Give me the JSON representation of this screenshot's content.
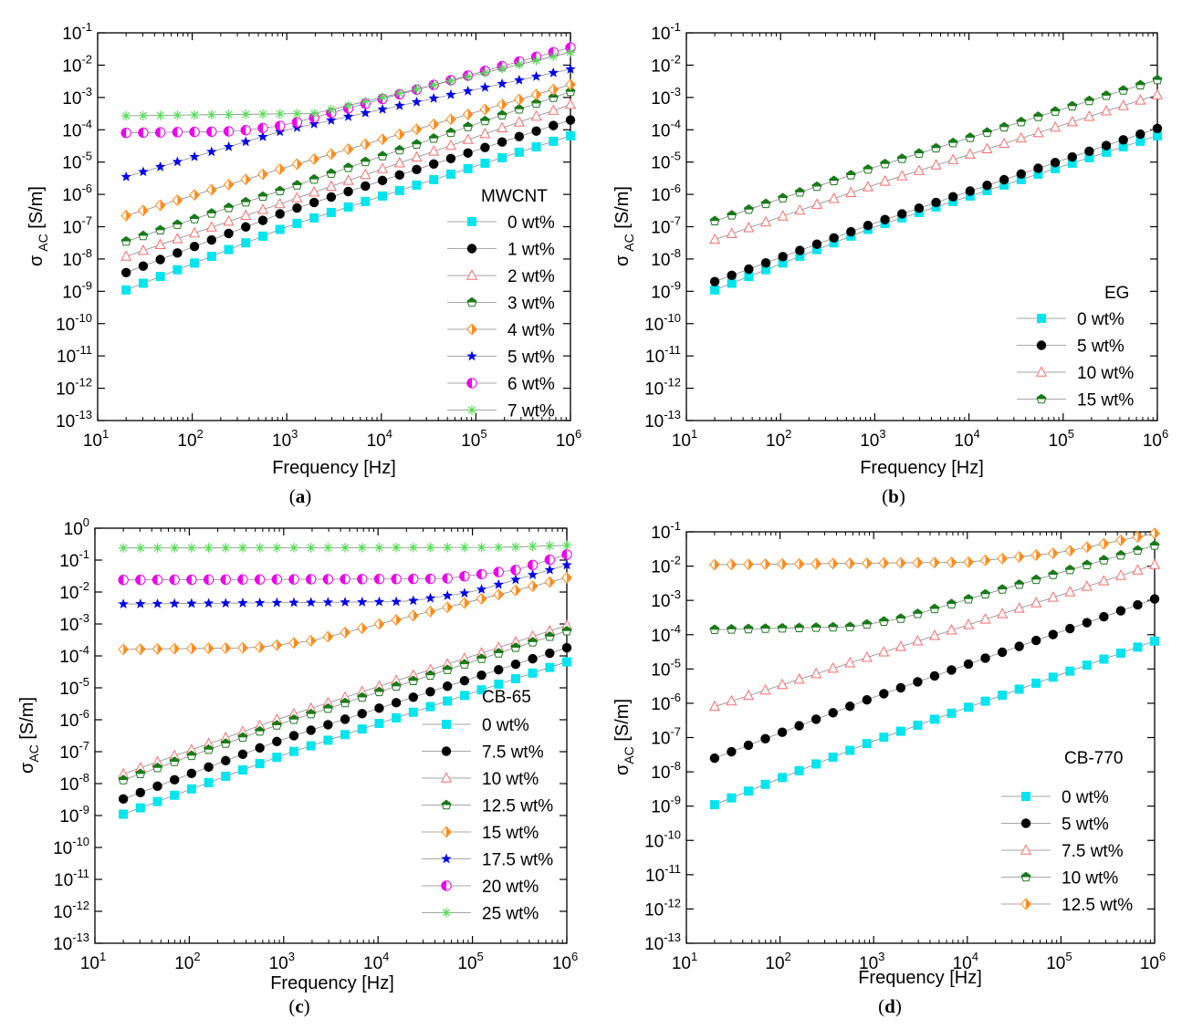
{
  "chart_data": [
    {
      "type": "scatter",
      "panel_label": "(a)",
      "legend_title": "MWCNT",
      "xlabel": "Frequency [Hz]",
      "ylabel": "σ AC [S/m]",
      "xscale": "log",
      "yscale": "log",
      "xlim": [
        10,
        1000000
      ],
      "ylim": [
        1e-13,
        0.1
      ],
      "x_ticks": [
        "1",
        "2",
        "3",
        "4",
        "5",
        "6"
      ],
      "y_ticks": [
        "-13",
        "-12",
        "-11",
        "-10",
        "-9",
        "-8",
        "-7",
        "-6",
        "-5",
        "-4",
        "-3",
        "-2",
        "-1"
      ],
      "tick_base": "10",
      "legend_position": "bottom-right",
      "series": [
        {
          "name": "0 wt%",
          "marker": "square",
          "color": "#00e5ee",
          "points": [
            [
              20,
              1.1e-09
            ],
            [
              1000,
              1e-07
            ],
            [
              1000000,
              6.5e-05
            ]
          ]
        },
        {
          "name": "1 wt%",
          "marker": "circle",
          "color": "#000000",
          "points": [
            [
              20,
              3.8e-09
            ],
            [
              1000,
              3e-07
            ],
            [
              1000000,
              0.0002
            ]
          ]
        },
        {
          "name": "2 wt%",
          "marker": "triangle",
          "color": "#ff6a6a",
          "points": [
            [
              20,
              1.2e-08
            ],
            [
              1000,
              6e-07
            ],
            [
              1000000,
              0.0006
            ]
          ]
        },
        {
          "name": "3 wt%",
          "marker": "pentagon",
          "color": "#1a7a1a",
          "points": [
            [
              20,
              3.5e-08
            ],
            [
              1000,
              1.5e-06
            ],
            [
              1000000,
              0.0015
            ]
          ]
        },
        {
          "name": "4 wt%",
          "marker": "diamond",
          "color": "#ff8c1a",
          "points": [
            [
              20,
              2.2e-07
            ],
            [
              1000,
              7e-06
            ],
            [
              1000000,
              0.0025
            ]
          ]
        },
        {
          "name": "5 wt%",
          "marker": "star",
          "color": "#0000ee",
          "points": [
            [
              20,
              3.5e-06
            ],
            [
              1000,
              0.0001
            ],
            [
              1000000,
              0.0075
            ]
          ]
        },
        {
          "name": "6 wt%",
          "marker": "circle-half",
          "color": "#ee00ee",
          "points": [
            [
              20,
              8e-05
            ],
            [
              300,
              9e-05
            ],
            [
              1000,
              0.00014
            ],
            [
              1000000,
              0.035
            ]
          ]
        },
        {
          "name": "7 wt%",
          "marker": "asterisk",
          "color": "#55dd55",
          "points": [
            [
              20,
              0.00027
            ],
            [
              2000,
              0.00032
            ],
            [
              1000000,
              0.025
            ]
          ]
        }
      ]
    },
    {
      "type": "scatter",
      "panel_label": "(b)",
      "legend_title": "EG",
      "xlabel": "Frequency [Hz]",
      "ylabel": "σ AC [S/m]",
      "xscale": "log",
      "yscale": "log",
      "xlim": [
        10,
        1000000
      ],
      "ylim": [
        1e-13,
        0.1
      ],
      "x_ticks": [
        "1",
        "2",
        "3",
        "4",
        "5",
        "6"
      ],
      "y_ticks": [
        "-13",
        "-12",
        "-11",
        "-10",
        "-9",
        "-8",
        "-7",
        "-6",
        "-5",
        "-4",
        "-3",
        "-2",
        "-1"
      ],
      "tick_base": "10",
      "legend_position": "bottom-right",
      "series": [
        {
          "name": "0 wt%",
          "marker": "square",
          "color": "#00e5ee",
          "points": [
            [
              20,
              1.1e-09
            ],
            [
              1000,
              1e-07
            ],
            [
              1000000,
              6.5e-05
            ]
          ]
        },
        {
          "name": "5 wt%",
          "marker": "circle",
          "color": "#000000",
          "points": [
            [
              20,
              2e-09
            ],
            [
              1000,
              1.3e-07
            ],
            [
              1000000,
              0.00011
            ]
          ]
        },
        {
          "name": "10 wt%",
          "marker": "triangle",
          "color": "#ff6a6a",
          "points": [
            [
              20,
              4e-08
            ],
            [
              1000,
              2e-06
            ],
            [
              1000000,
              0.0012
            ]
          ]
        },
        {
          "name": "15 wt%",
          "marker": "pentagon",
          "color": "#1a7a1a",
          "points": [
            [
              20,
              1.5e-07
            ],
            [
              1000,
              7e-06
            ],
            [
              1000000,
              0.0035
            ]
          ]
        }
      ]
    },
    {
      "type": "scatter",
      "panel_label": "(c)",
      "legend_title": "CB-65",
      "xlabel": "Frequency [Hz]",
      "ylabel": "σAC [S/m]",
      "xscale": "log",
      "yscale": "log",
      "xlim": [
        10,
        1000000
      ],
      "ylim": [
        1e-13,
        1
      ],
      "x_ticks": [
        "1",
        "2",
        "3",
        "4",
        "5",
        "6"
      ],
      "y_ticks": [
        "-13",
        "-12",
        "-11",
        "-10",
        "-9",
        "-8",
        "-7",
        "-6",
        "-5",
        "-4",
        "-3",
        "-2",
        "-1",
        "0"
      ],
      "tick_base": "10",
      "legend_position": "bottom-right",
      "series": [
        {
          "name": "0 wt%",
          "marker": "square",
          "color": "#00e5ee",
          "points": [
            [
              20,
              1.1e-09
            ],
            [
              1000,
              8e-08
            ],
            [
              1000000,
              6.5e-05
            ]
          ]
        },
        {
          "name": "7.5 wt%",
          "marker": "circle",
          "color": "#000000",
          "points": [
            [
              20,
              3.3e-09
            ],
            [
              1000,
              2.5e-07
            ],
            [
              1000000,
              0.00018
            ]
          ]
        },
        {
          "name": "10 wt%",
          "marker": "triangle",
          "color": "#ff6a6a",
          "points": [
            [
              20,
              2e-08
            ],
            [
              1000,
              1.2e-06
            ],
            [
              1000000,
              0.0009
            ]
          ]
        },
        {
          "name": "12.5 wt%",
          "marker": "pentagon",
          "color": "#1a7a1a",
          "points": [
            [
              20,
              1.3e-08
            ],
            [
              1000,
              8e-07
            ],
            [
              1000000,
              0.0006
            ]
          ]
        },
        {
          "name": "15 wt%",
          "marker": "diamond",
          "color": "#ff8c1a",
          "points": [
            [
              20,
              0.00016
            ],
            [
              500,
              0.00018
            ],
            [
              2000,
              0.0003
            ],
            [
              1000000,
              0.028
            ]
          ]
        },
        {
          "name": "17.5 wt%",
          "marker": "star",
          "color": "#0000ee",
          "points": [
            [
              20,
              0.0042
            ],
            [
              20000,
              0.005
            ],
            [
              100000,
              0.01
            ],
            [
              1000000,
              0.07
            ]
          ]
        },
        {
          "name": "20 wt%",
          "marker": "circle-half",
          "color": "#ee00ee",
          "points": [
            [
              20,
              0.024
            ],
            [
              50000,
              0.026
            ],
            [
              300000,
              0.05
            ],
            [
              1000000,
              0.15
            ]
          ]
        },
        {
          "name": "25 wt%",
          "marker": "asterisk",
          "color": "#55dd55",
          "points": [
            [
              20,
              0.24
            ],
            [
              200000,
              0.25
            ],
            [
              1000000,
              0.29
            ]
          ]
        }
      ]
    },
    {
      "type": "scatter",
      "panel_label": "(d)",
      "legend_title": "CB-770",
      "xlabel": "Frequency [Hz]",
      "ylabel": "σAC [S/m]",
      "xscale": "log",
      "yscale": "log",
      "xlim": [
        10,
        1000000
      ],
      "ylim": [
        1e-13,
        0.1
      ],
      "x_ticks": [
        "1",
        "2",
        "3",
        "4",
        "5",
        "6"
      ],
      "y_ticks": [
        "-13",
        "-12",
        "-11",
        "-10",
        "-9",
        "-8",
        "-7",
        "-6",
        "-5",
        "-4",
        "-3",
        "-2",
        "-1"
      ],
      "tick_base": "10",
      "legend_position": "bottom-right",
      "series": [
        {
          "name": "0 wt%",
          "marker": "square",
          "color": "#00e5ee",
          "points": [
            [
              20,
              1.1e-09
            ],
            [
              1000,
              8e-08
            ],
            [
              1000000,
              6.5e-05
            ]
          ]
        },
        {
          "name": "5 wt%",
          "marker": "circle",
          "color": "#000000",
          "points": [
            [
              20,
              2.5e-08
            ],
            [
              1000,
              1.5e-06
            ],
            [
              1000000,
              0.0011
            ]
          ]
        },
        {
          "name": "7.5 wt%",
          "marker": "triangle",
          "color": "#ff6a6a",
          "points": [
            [
              20,
              8e-07
            ],
            [
              1000,
              2.5e-05
            ],
            [
              1000000,
              0.011
            ]
          ]
        },
        {
          "name": "10 wt%",
          "marker": "pentagon",
          "color": "#1a7a1a",
          "points": [
            [
              20,
              0.00014
            ],
            [
              600,
              0.00017
            ],
            [
              2000,
              0.0003
            ],
            [
              1000000,
              0.04
            ]
          ]
        },
        {
          "name": "12.5 wt%",
          "marker": "diamond",
          "color": "#ff8c1a",
          "points": [
            [
              20,
              0.011
            ],
            [
              10000,
              0.013
            ],
            [
              100000,
              0.025
            ],
            [
              1000000,
              0.09
            ]
          ]
        }
      ]
    }
  ]
}
